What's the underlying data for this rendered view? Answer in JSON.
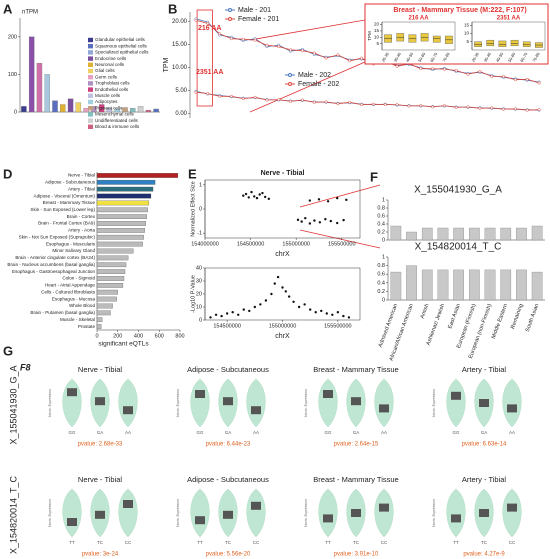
{
  "panel_labels": [
    "A",
    "B",
    "C",
    "D",
    "E",
    "F",
    "G"
  ],
  "chart_data": [
    {
      "type": "bar",
      "ylabel": "nTPM",
      "ylim": [
        0,
        250
      ],
      "yticks": [
        0,
        100,
        200
      ],
      "categories": [
        null,
        null,
        null,
        null,
        null,
        null,
        null,
        null,
        null,
        null,
        null,
        null,
        null,
        null,
        null,
        null,
        null,
        null
      ],
      "values": [
        15,
        200,
        130,
        100,
        30,
        20,
        35,
        25,
        10,
        15,
        20,
        10,
        8,
        12,
        10,
        15,
        5,
        8
      ],
      "colors": [
        "#3b3b8f",
        "#8a4fa8",
        "#d070a8",
        "#a8c8e0",
        "#5a6fc0",
        "#e0b030",
        "#7a4fa0",
        "#f0d060",
        "#e8a0c0",
        "#b090c0",
        "#d04080",
        "#c0c0e0",
        "#a0d0e0",
        "#c0a080",
        "#80c0c0",
        "#d0d0d0",
        "#d06080",
        "#5a6fc0"
      ],
      "legend": [
        {
          "name": "Glandular epithelial cells",
          "color": "#3b3b8f"
        },
        {
          "name": "Squamous epithelial cells",
          "color": "#5a6fc0"
        },
        {
          "name": "Specialized epithelial cells",
          "color": "#8fa8d8"
        },
        {
          "name": "Endocrine cells",
          "color": "#7a4fa0"
        },
        {
          "name": "Neuronal cells",
          "color": "#e0b030"
        },
        {
          "name": "Glial cells",
          "color": "#f0d060"
        },
        {
          "name": "Germ cells",
          "color": "#e8a0c0"
        },
        {
          "name": "Trophoblast cells",
          "color": "#b090c0"
        },
        {
          "name": "Endothelial cells",
          "color": "#d04080"
        },
        {
          "name": "Muscle cells",
          "color": "#c0c0e0"
        },
        {
          "name": "Adipocytes",
          "color": "#a0d0e0"
        },
        {
          "name": "Pigment cells",
          "color": "#c0a080"
        },
        {
          "name": "Mesenchymal cells",
          "color": "#80c0c0"
        },
        {
          "name": "Undifferentiated cells",
          "color": "#d0d0d0"
        },
        {
          "name": "Blood & immune cells",
          "color": "#d06080"
        }
      ]
    },
    {
      "type": "line",
      "ylabel": "TPM",
      "ylim": [
        -1,
        22
      ],
      "yticks": [
        {
          "value": 20,
          "label": "20.00"
        },
        {
          "value": 15,
          "label": "15.00"
        },
        {
          "value": 10,
          "label": "10.00"
        },
        {
          "value": 5,
          "label": "5.00"
        },
        {
          "value": 0,
          "label": "0.00"
        }
      ],
      "annotations": [
        "216 AA",
        "2351 AA"
      ],
      "categories": [
        null,
        null,
        null,
        null,
        null,
        null,
        null,
        null,
        null,
        null,
        null,
        null,
        null,
        null,
        null,
        null,
        null,
        null,
        null,
        null,
        null,
        null,
        null,
        null,
        null,
        null,
        null,
        null,
        null,
        null
      ],
      "series": [
        {
          "name": "Male - 201",
          "color": "#4a78c0",
          "values": [
            20.5,
            19.8,
            17,
            16.5,
            15.8,
            16.2,
            14.5,
            14.8,
            13.5,
            13.9,
            12.8,
            12.2,
            12.5,
            11.6,
            11.8,
            10.9,
            11.2,
            10.4,
            10.6,
            9.9,
            9.5,
            9.8,
            9.1,
            8.7,
            8.9,
            8.2,
            7.8,
            7.5,
            7.2,
            6.8
          ]
        },
        {
          "name": "Female - 201",
          "color": "#d9473a",
          "values": [
            20.2,
            19.5,
            17.3,
            16.2,
            16.1,
            15.9,
            14.8,
            14.5,
            13.8,
            13.6,
            13.1,
            12.0,
            12.7,
            11.4,
            12.0,
            10.7,
            11.4,
            10.2,
            10.8,
            9.7,
            9.7,
            9.6,
            9.3,
            8.5,
            9.1,
            8.0,
            8.0,
            7.3,
            7.4,
            6.6
          ]
        },
        {
          "name": "Male - 202",
          "color": "#4a78c0",
          "values": [
            4.8,
            4.2,
            3.9,
            3.6,
            3.3,
            3.4,
            3.0,
            2.9,
            2.7,
            2.8,
            2.5,
            2.4,
            2.2,
            2.3,
            2.0,
            1.9,
            2.0,
            1.8,
            1.7,
            1.6,
            1.5,
            1.6,
            1.4,
            1.3,
            1.2,
            1.1,
            1.0,
            0.9,
            0.8,
            0.7
          ]
        },
        {
          "name": "Female - 202",
          "color": "#d9473a",
          "values": [
            4.6,
            4.3,
            3.7,
            3.7,
            3.2,
            3.5,
            2.9,
            3.0,
            2.6,
            2.9,
            2.4,
            2.5,
            2.1,
            2.4,
            1.9,
            2.0,
            1.9,
            1.9,
            1.6,
            1.7,
            1.4,
            1.7,
            1.3,
            1.4,
            1.1,
            1.2,
            0.9,
            1.0,
            0.7,
            0.8
          ]
        }
      ]
    },
    {
      "type": "box",
      "title": "Breast - Mammary Tissue (M:222, F:107)",
      "ylabel": "TPM",
      "color": "#e8c840",
      "categories": [
        "20-30",
        "30-40",
        "40-50",
        "50-60",
        "60-70",
        "70-80"
      ],
      "panels": [
        {
          "name": "216 AA",
          "ylim": [
            0,
            22
          ],
          "yticks": [
            5,
            10,
            15,
            20
          ],
          "boxes": [
            [
              6,
              9,
              12
            ],
            [
              7,
              10,
              13
            ],
            [
              6,
              9,
              12
            ],
            [
              7,
              10,
              13
            ],
            [
              6,
              9,
              11
            ],
            [
              5,
              8,
              11
            ]
          ]
        },
        {
          "name": "2351 AA",
          "ylim": [
            0,
            17
          ],
          "yticks": [
            5,
            10,
            15
          ],
          "boxes": [
            [
              2,
              3.5,
              5
            ],
            [
              2.5,
              4,
              6
            ],
            [
              2,
              3.5,
              5.5
            ],
            [
              2.5,
              4,
              6
            ],
            [
              2,
              3.5,
              5
            ],
            [
              1.5,
              3,
              4.5
            ]
          ]
        }
      ]
    },
    {
      "type": "hbar",
      "xlabel": "significant eQTLs",
      "xlim": [
        0,
        800
      ],
      "xticks": [
        0,
        200,
        400,
        600,
        800
      ],
      "categories": [
        "Nerve - Tibial",
        "Adipose - Subcutaneous",
        "Artery - Tibial",
        "Adipose - Visceral (Omentum)",
        "Breast - Mammary Tissue",
        "Skin - Sun Exposed (Lower leg)",
        "Brain - Cortex",
        "Brain - Frontal Cortex (BA9)",
        "Artery - Aorta",
        "Skin - Not Sun Exposed (Suprapubic)",
        "Esophagus - Muscularis",
        "Minor Salivary Gland",
        "Brain - Anterior cingulate cortex (BA24)",
        "Brain - Nucleus accumbens (basal ganglia)",
        "Esophagus - Gastroesophageal Junction",
        "Colon - Sigmoid",
        "Heart - Atrial Appendage",
        "Cells - Cultured fibroblasts",
        "Esophagus - Mucosa",
        "Whole Blood",
        "Brain - Putamen (basal ganglia)",
        "Muscle - Skeletal",
        "Prostate"
      ],
      "values": [
        780,
        560,
        540,
        520,
        500,
        490,
        480,
        470,
        460,
        450,
        440,
        350,
        300,
        280,
        270,
        260,
        250,
        200,
        190,
        150,
        130,
        50,
        40
      ],
      "colors": [
        "#b22222",
        "#2f7fc1",
        "#2a6f7f",
        "#1f2f6f",
        "#f0e040",
        "#bbbbbb",
        "#bbbbbb",
        "#bbbbbb",
        "#bbbbbb",
        "#bbbbbb",
        "#bbbbbb",
        "#bbbbbb",
        "#bbbbbb",
        "#bbbbbb",
        "#bbbbbb",
        "#bbbbbb",
        "#bbbbbb",
        "#bbbbbb",
        "#bbbbbb",
        "#bbbbbb",
        "#bbbbbb",
        "#bbbbbb",
        "#bbbbbb"
      ]
    },
    {
      "type": "scatter",
      "title": "Nerve - Tibial",
      "xlabel": "chrX",
      "ylabel": "Normalized Effect Size",
      "xlim": [
        154000000,
        155700000
      ],
      "xticks": [
        154000000,
        154500000,
        155000000,
        155500000
      ],
      "ylim": [
        -1.2,
        1.2
      ],
      "yticks": [
        -1,
        0,
        1
      ],
      "x": [
        154420000,
        154450000,
        154480000,
        154510000,
        154540000,
        154570000,
        154600000,
        154630000,
        154660000,
        154700000,
        155020000,
        155060000,
        155100000,
        155150000,
        155200000,
        155260000,
        155320000,
        155380000,
        155450000,
        155520000,
        155150000,
        155250000,
        155350000,
        155450000,
        155550000
      ],
      "y": [
        0.55,
        0.62,
        0.48,
        0.7,
        0.52,
        0.45,
        0.6,
        0.66,
        0.5,
        0.42,
        -0.45,
        -0.52,
        -0.38,
        -0.6,
        -0.48,
        -0.55,
        -0.42,
        -0.5,
        -0.58,
        -0.46,
        0.35,
        0.4,
        0.32,
        0.45,
        0.38
      ]
    },
    {
      "type": "scatter",
      "xlabel": "chrX",
      "ylabel": "-Log10 P-Value",
      "xlim": [
        154300000,
        155700000
      ],
      "xticks": [
        154500000,
        155000000,
        155500000
      ],
      "ylim": [
        0,
        40
      ],
      "yticks": [
        0,
        10,
        20,
        30,
        40
      ],
      "x": [
        154350000,
        154400000,
        154450000,
        154500000,
        154550000,
        154600000,
        154650000,
        154700000,
        154750000,
        154800000,
        154850000,
        154900000,
        154930000,
        154960000,
        155000000,
        155030000,
        155060000,
        155100000,
        155150000,
        155200000,
        155250000,
        155300000,
        155350000,
        155400000,
        155450000,
        155500000,
        155550000,
        155600000
      ],
      "y": [
        2,
        4,
        3,
        5,
        6,
        4,
        8,
        7,
        10,
        12,
        15,
        20,
        28,
        33,
        25,
        22,
        18,
        14,
        10,
        12,
        8,
        6,
        7,
        5,
        4,
        6,
        3,
        2
      ]
    },
    {
      "type": "bar",
      "title": "X_155041930_G_A",
      "color": "#c8c8c8",
      "ylim": [
        0,
        1
      ],
      "yticks": [
        0,
        0.2,
        0.4,
        0.6,
        0.8,
        1
      ],
      "categories": [
        null,
        null,
        null,
        null,
        null,
        null,
        null,
        null,
        null,
        null
      ],
      "values": [
        0.35,
        0.2,
        0.3,
        0.3,
        0.3,
        0.3,
        0.3,
        0.3,
        0.3,
        0.35
      ]
    },
    {
      "type": "bar",
      "title": "X_154820014_T_C",
      "color": "#c8c8c8",
      "ylim": [
        0,
        1
      ],
      "yticks": [
        0,
        0.2,
        0.4,
        0.6,
        0.8,
        1
      ],
      "categories": [
        "Admixed American",
        "African/African American",
        "Amish",
        "Ashkenazi Jewish",
        "East Asian",
        "European (Finnish)",
        "European (non-Finnish)",
        "Middle Eastern",
        "Remaining",
        "South Asian"
      ],
      "values": [
        0.65,
        0.8,
        0.7,
        0.7,
        0.7,
        0.7,
        0.7,
        0.7,
        0.7,
        0.65
      ]
    },
    {
      "type": "violin",
      "gene": "F8",
      "ylabel": "Norm. Expression",
      "rows": [
        {
          "label": "X_155041930_G_A",
          "categories": [
            "GG",
            "GA",
            "AA"
          ],
          "panels": [
            {
              "title": "Nerve - Tibial",
              "values": [
                0.6,
                0.1,
                -0.4
              ],
              "pvalue": "pvalue: 2.68e-33"
            },
            {
              "title": "Adipose - Subcutaneous",
              "values": [
                0.5,
                0.1,
                -0.4
              ],
              "pvalue": "pvalue: 6.44e-23"
            },
            {
              "title": "Breast - Mammary Tissue",
              "values": [
                0.5,
                0.1,
                -0.3
              ],
              "pvalue": "pvalue: 2.64e-15"
            },
            {
              "title": "Artery - Tibial",
              "values": [
                0.4,
                0,
                -0.3
              ],
              "pvalue": "pvalue: 6.63e-14"
            }
          ]
        },
        {
          "label": "X_154820014_T_C",
          "categories": [
            "TT",
            "TC",
            "CC"
          ],
          "panels": [
            {
              "title": "Nerve - Tibial",
              "values": [
                -0.5,
                -0.1,
                0.5
              ],
              "pvalue": "pvalue: 3e-24"
            },
            {
              "title": "Adipose - Subcutaneous",
              "values": [
                -0.4,
                -0.1,
                0.4
              ],
              "pvalue": "pvalue: 5.56e-20"
            },
            {
              "title": "Breast - Mammary Tissue",
              "values": [
                -0.3,
                0,
                0.3
              ],
              "pvalue": "pvalue: 3.91e-10"
            },
            {
              "title": "Artery - Tibial",
              "values": [
                -0.3,
                0,
                0.3
              ],
              "pvalue": "pvalue: 4.27e-9"
            }
          ]
        }
      ]
    }
  ]
}
